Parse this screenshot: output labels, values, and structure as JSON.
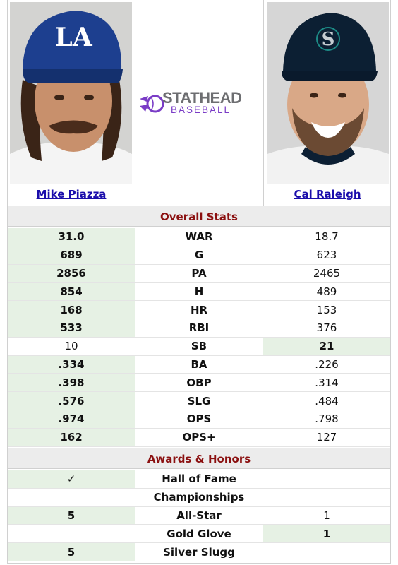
{
  "players": {
    "left": {
      "name": "Mike Piazza",
      "cap_letters": "LA"
    },
    "right": {
      "name": "Cal Raleigh",
      "cap_letters": "S"
    }
  },
  "logo": {
    "line1": "STATHEAD",
    "line2": "BASEBALL"
  },
  "overall": {
    "title": "Overall Stats",
    "rows": [
      {
        "stat": "WAR",
        "left": "31.0",
        "right": "18.7",
        "winner": "left"
      },
      {
        "stat": "G",
        "left": "689",
        "right": "623",
        "winner": "left"
      },
      {
        "stat": "PA",
        "left": "2856",
        "right": "2465",
        "winner": "left"
      },
      {
        "stat": "H",
        "left": "854",
        "right": "489",
        "winner": "left"
      },
      {
        "stat": "HR",
        "left": "168",
        "right": "153",
        "winner": "left"
      },
      {
        "stat": "RBI",
        "left": "533",
        "right": "376",
        "winner": "left"
      },
      {
        "stat": "SB",
        "left": "10",
        "right": "21",
        "winner": "right"
      },
      {
        "stat": "BA",
        "left": ".334",
        "right": ".226",
        "winner": "left"
      },
      {
        "stat": "OBP",
        "left": ".398",
        "right": ".314",
        "winner": "left"
      },
      {
        "stat": "SLG",
        "left": ".576",
        "right": ".484",
        "winner": "left"
      },
      {
        "stat": "OPS",
        "left": ".974",
        "right": ".798",
        "winner": "left"
      },
      {
        "stat": "OPS+",
        "left": "162",
        "right": "127",
        "winner": "left"
      }
    ]
  },
  "awards": {
    "title": "Awards & Honors",
    "rows": [
      {
        "stat": "Hall of Fame",
        "left": "✓",
        "right": "",
        "winner": "left"
      },
      {
        "stat": "Championships",
        "left": "",
        "right": "",
        "winner": "none"
      },
      {
        "stat": "All-Star",
        "left": "5",
        "right": "1",
        "winner": "left"
      },
      {
        "stat": "Gold Glove",
        "left": "",
        "right": "1",
        "winner": "right"
      },
      {
        "stat": "Silver Slugg",
        "left": "5",
        "right": "",
        "winner": "left"
      }
    ]
  },
  "colors": {
    "win_bg": "#e6f1e4",
    "section_text": "#8b1010",
    "link": "#1a0dab",
    "dodgers_blue": "#1d3f8f",
    "mariners_navy": "#0c1f33",
    "mariners_teal": "#1d8a86"
  }
}
